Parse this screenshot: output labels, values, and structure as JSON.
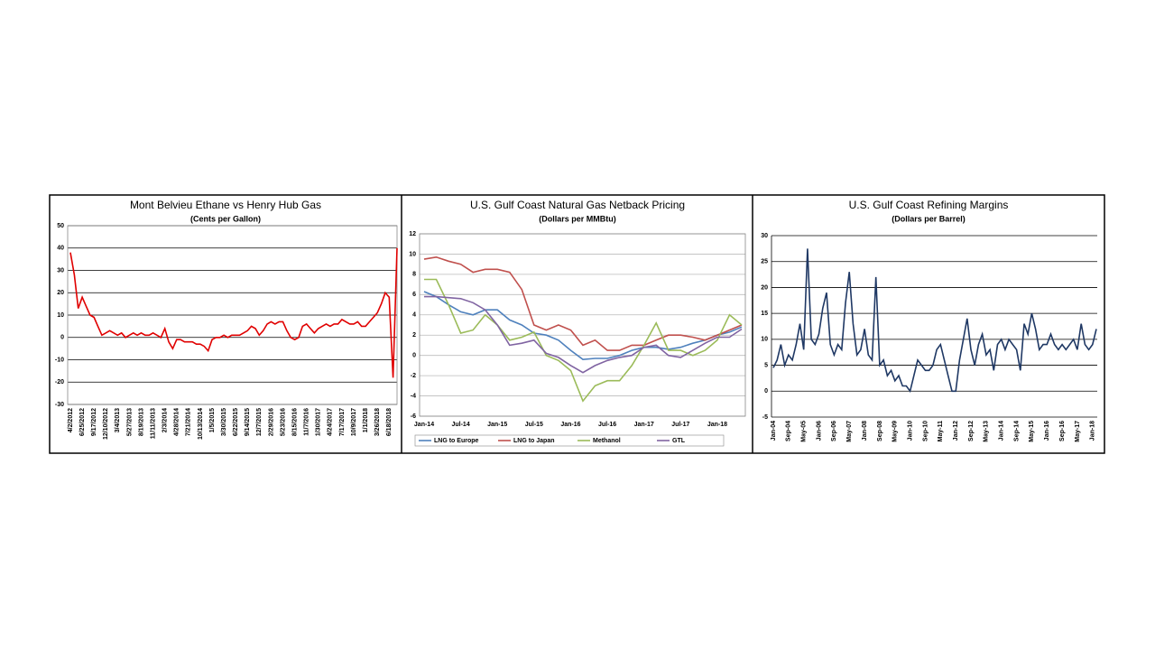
{
  "chart_data": [
    {
      "type": "line",
      "title": "Mont Belvieu Ethane vs Henry Hub Gas",
      "subtitle": "(Cents per Gallon)",
      "categories": [
        "4/2/2012",
        null,
        null,
        "6/25/2012",
        null,
        null,
        "9/17/2012",
        null,
        null,
        "12/10/2012",
        null,
        null,
        "3/4/2013",
        null,
        null,
        "5/27/2013",
        null,
        null,
        "8/19/2013",
        null,
        null,
        "11/11/2013",
        null,
        null,
        "2/3/2014",
        null,
        null,
        "4/28/2014",
        null,
        null,
        "7/21/2014",
        null,
        null,
        "10/13/2014",
        null,
        null,
        "1/5/2015",
        null,
        null,
        "3/30/2015",
        null,
        null,
        "6/22/2015",
        null,
        null,
        "9/14/2015",
        null,
        null,
        "12/7/2015",
        null,
        null,
        "2/29/2016",
        null,
        null,
        "5/23/2016",
        null,
        null,
        "8/15/2016",
        null,
        null,
        "11/7/2016",
        null,
        null,
        "1/30/2017",
        null,
        null,
        "4/24/2017",
        null,
        null,
        "7/17/2017",
        null,
        null,
        "10/9/2017",
        null,
        null,
        "1/1/2018",
        null,
        null,
        "3/26/2018",
        null,
        null,
        "6/18/2018",
        null,
        null
      ],
      "series": [
        {
          "name": "Ethane vs Henry Hub",
          "color": "#e00000",
          "values": [
            38,
            28,
            13,
            18,
            14,
            10,
            9,
            5,
            1,
            2,
            3,
            2,
            1,
            2,
            0,
            1,
            2,
            1,
            2,
            1,
            1,
            2,
            1,
            0,
            4,
            -2,
            -5,
            -1,
            -1,
            -2,
            -2,
            -2,
            -3,
            -3,
            -4,
            -6,
            -1,
            0,
            0,
            1,
            0,
            1,
            1,
            1,
            2,
            3,
            5,
            4,
            1,
            3,
            6,
            7,
            6,
            7,
            7,
            3,
            0,
            -1,
            0,
            5,
            6,
            4,
            2,
            4,
            5,
            6,
            5,
            6,
            6,
            8,
            7,
            6,
            6,
            7,
            5,
            5,
            7,
            9,
            11,
            15,
            20,
            18,
            -18,
            40
          ]
        }
      ],
      "ylim": [
        -30,
        50
      ],
      "yticks": [
        -30,
        -20,
        -10,
        0,
        10,
        20,
        30,
        40,
        50
      ],
      "grid": true
    },
    {
      "type": "line",
      "title": "U.S. Gulf Coast Natural Gas Netback Pricing",
      "subtitle": "(Dollars per MMBtu)",
      "categories": [
        "Jan-14",
        null,
        null,
        "Jul-14",
        null,
        null,
        "Jan-15",
        null,
        null,
        "Jul-15",
        null,
        null,
        "Jan-16",
        null,
        null,
        "Jul-16",
        null,
        null,
        "Jan-17",
        null,
        null,
        "Jul-17",
        null,
        null,
        "Jan-18",
        null,
        null
      ],
      "series": [
        {
          "name": "LNG to Europe",
          "color": "#4f81bd",
          "values": [
            6.3,
            5.8,
            5.0,
            4.3,
            4.0,
            4.5,
            4.5,
            3.5,
            3.0,
            2.2,
            2.0,
            1.5,
            0.5,
            -0.4,
            -0.3,
            -0.3,
            0.0,
            0.5,
            0.8,
            0.8,
            0.6,
            0.8,
            1.2,
            1.5,
            2.0,
            2.3,
            2.8
          ]
        },
        {
          "name": "LNG to Japan",
          "color": "#c0504d",
          "values": [
            9.5,
            9.7,
            9.3,
            9.0,
            8.2,
            8.5,
            8.5,
            8.2,
            6.5,
            3.0,
            2.5,
            3.0,
            2.5,
            1.0,
            1.5,
            0.5,
            0.5,
            1.0,
            1.0,
            1.5,
            2.0,
            2.0,
            1.8,
            1.5,
            2.0,
            2.5,
            3.0
          ]
        },
        {
          "name": "Methanol",
          "color": "#9bbb59",
          "values": [
            7.5,
            7.5,
            5.0,
            2.2,
            2.5,
            4.0,
            3.0,
            1.5,
            1.8,
            2.3,
            0.0,
            -0.5,
            -1.5,
            -4.5,
            -3.0,
            -2.5,
            -2.5,
            -1.0,
            1.0,
            3.2,
            0.5,
            0.5,
            0.0,
            0.5,
            1.5,
            4.0,
            3.0
          ]
        },
        {
          "name": "GTL",
          "color": "#8064a2",
          "values": [
            5.8,
            5.8,
            5.7,
            5.6,
            5.2,
            4.5,
            3.0,
            1.0,
            1.2,
            1.5,
            0.2,
            -0.2,
            -1.0,
            -1.7,
            -1.0,
            -0.5,
            -0.2,
            0.0,
            0.8,
            1.0,
            0.0,
            -0.2,
            0.5,
            1.2,
            1.8,
            1.8,
            2.6
          ]
        }
      ],
      "ylim": [
        -6,
        12
      ],
      "yticks": [
        -6,
        -4,
        -2,
        0,
        2,
        4,
        6,
        8,
        10,
        12
      ],
      "grid": true,
      "legend": "bottom"
    },
    {
      "type": "line",
      "title": "U.S. Gulf Coast Refining Margins",
      "subtitle": "(Dollars per Barrel)",
      "categories": [
        "Jan-04",
        null,
        null,
        null,
        "Sep-04",
        null,
        null,
        null,
        "May-05",
        null,
        null,
        null,
        "Jan-06",
        null,
        null,
        null,
        "Sep-06",
        null,
        null,
        null,
        "May-07",
        null,
        null,
        null,
        "Jan-08",
        null,
        null,
        null,
        "Sep-08",
        null,
        null,
        null,
        "May-09",
        null,
        null,
        null,
        "Jan-10",
        null,
        null,
        null,
        "Sep-10",
        null,
        null,
        null,
        "May-11",
        null,
        null,
        null,
        "Jan-12",
        null,
        null,
        null,
        "Sep-12",
        null,
        null,
        null,
        "May-13",
        null,
        null,
        null,
        "Jan-14",
        null,
        null,
        null,
        "Sep-14",
        null,
        null,
        null,
        "May-15",
        null,
        null,
        null,
        "Jan-16",
        null,
        null,
        null,
        "Sep-16",
        null,
        null,
        null,
        "May-17",
        null,
        null,
        null,
        "Jan-18",
        null
      ],
      "series": [
        {
          "name": "Refining Margins",
          "color": "#1f3864",
          "values": [
            4.5,
            6,
            9,
            5,
            7,
            6,
            9,
            13,
            8,
            27.5,
            10,
            9,
            11,
            16,
            19,
            9,
            7,
            9,
            8,
            17,
            23,
            13,
            7,
            8,
            12,
            7,
            6,
            22,
            5,
            6,
            3,
            4,
            2,
            3,
            1,
            1,
            0,
            3,
            6,
            5,
            4,
            4,
            5,
            8,
            9,
            6,
            3,
            0,
            0,
            6,
            10,
            14,
            8,
            5,
            9,
            11,
            7,
            8,
            4,
            9,
            10,
            8,
            10,
            9,
            8,
            4,
            13,
            11,
            15,
            12,
            8,
            9,
            9,
            11,
            9,
            8,
            9,
            8,
            9,
            10,
            8,
            13,
            9,
            8,
            9,
            12
          ]
        }
      ],
      "ylim": [
        -5,
        30
      ],
      "yticks": [
        -5,
        0,
        5,
        10,
        15,
        20,
        25,
        30
      ],
      "grid": true
    }
  ]
}
